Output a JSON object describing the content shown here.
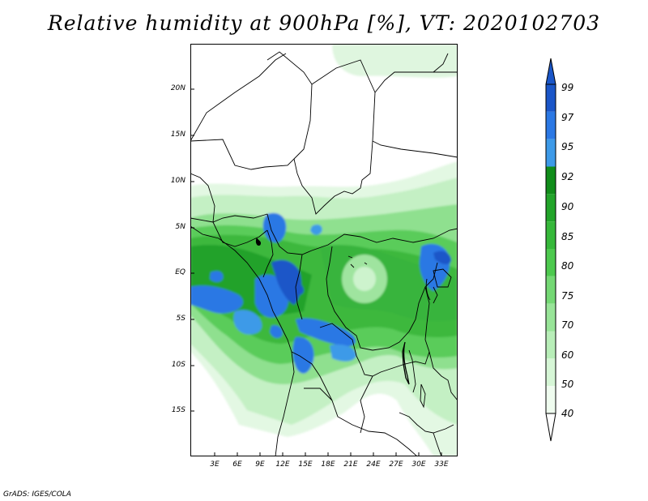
{
  "title": "Relative humidity at 900hPa [%], VT: 2020102703",
  "footer": "GrADS: IGES/COLA",
  "lat_labels": [
    "20N",
    "15N",
    "10N",
    "5N",
    "EQ",
    "5S",
    "10S",
    "15S"
  ],
  "lon_labels": [
    "3E",
    "6E",
    "9E",
    "12E",
    "15E",
    "18E",
    "21E",
    "24E",
    "27E",
    "30E",
    "33E"
  ],
  "colorbar": {
    "labels": [
      "99",
      "97",
      "95",
      "92",
      "90",
      "85",
      "80",
      "75",
      "70",
      "60",
      "50",
      "40"
    ],
    "colors": [
      "#1a56c8",
      "#2b78e4",
      "#3d9ae8",
      "#118d1a",
      "#22a42a",
      "#36b83a",
      "#4dc94e",
      "#74d874",
      "#98e498",
      "#b8eeb8",
      "#d6f6d6",
      "#effcef"
    ]
  }
}
